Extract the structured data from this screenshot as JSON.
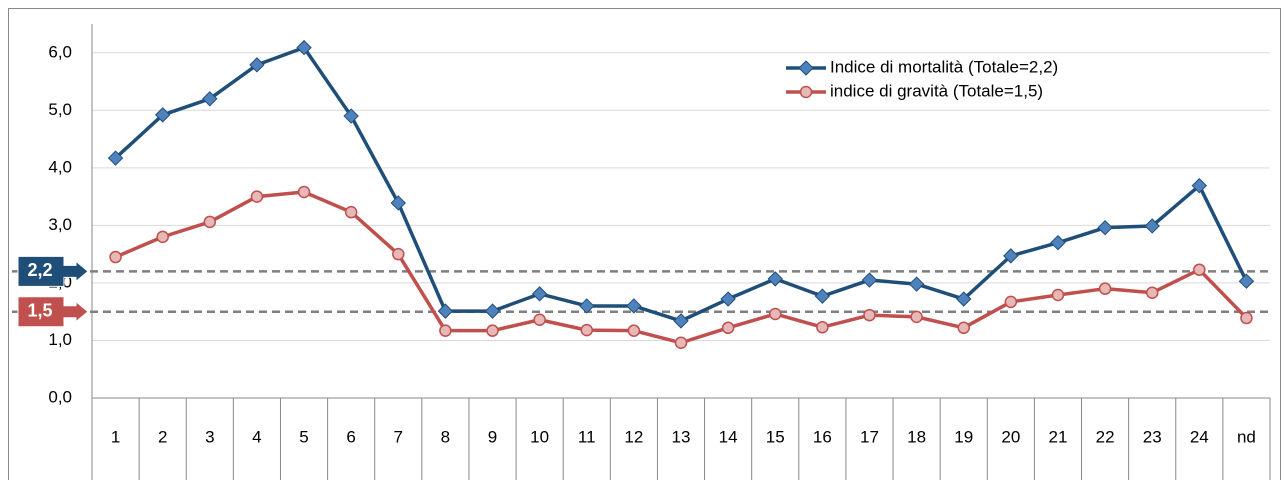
{
  "chart_data": {
    "type": "line",
    "categories": [
      "1",
      "2",
      "3",
      "4",
      "5",
      "6",
      "7",
      "8",
      "9",
      "10",
      "11",
      "12",
      "13",
      "14",
      "15",
      "16",
      "17",
      "18",
      "19",
      "20",
      "21",
      "22",
      "23",
      "24",
      "nd"
    ],
    "series": [
      {
        "name": "Indice di mortalità (Totale=2,2)",
        "color": "#1f4e79",
        "marker": "diamond",
        "marker_color": "#4f81bd",
        "values": [
          4.17,
          4.92,
          5.2,
          5.79,
          6.09,
          4.9,
          3.39,
          1.51,
          1.51,
          1.81,
          1.6,
          1.6,
          1.34,
          1.72,
          2.07,
          1.77,
          2.05,
          1.98,
          1.72,
          2.47,
          2.7,
          2.96,
          2.99,
          3.69,
          2.03
        ]
      },
      {
        "name": "indice di gravità (Totale=1,5)",
        "color": "#c0504d",
        "marker": "circle",
        "marker_color": "#e6b9b8",
        "values": [
          2.45,
          2.8,
          3.06,
          3.5,
          3.58,
          3.23,
          2.5,
          1.17,
          1.17,
          1.36,
          1.18,
          1.17,
          0.96,
          1.22,
          1.46,
          1.23,
          1.44,
          1.41,
          1.22,
          1.67,
          1.79,
          1.9,
          1.83,
          2.23,
          1.39
        ]
      }
    ],
    "reference_lines": [
      {
        "value": 2.2,
        "label": "2,2",
        "color": "#1f4e79"
      },
      {
        "value": 1.5,
        "label": "1,5",
        "color": "#c0504d"
      }
    ],
    "ylim": [
      0,
      6.5
    ],
    "yticks": [
      {
        "value": 0,
        "label": "0,0"
      },
      {
        "value": 1,
        "label": "1,0"
      },
      {
        "value": 2,
        "label": "2,0"
      },
      {
        "value": 3,
        "label": "3,0"
      },
      {
        "value": 4,
        "label": "4,0"
      },
      {
        "value": 5,
        "label": "5,0"
      },
      {
        "value": 6,
        "label": "6,0"
      }
    ],
    "grid": true,
    "legend": "top-right"
  }
}
